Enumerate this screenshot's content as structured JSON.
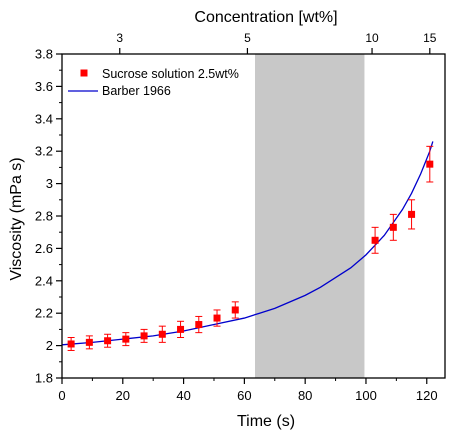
{
  "chart_data": {
    "type": "scatter",
    "title": "",
    "xlabel": "Time (s)",
    "ylabel": "Viscosity (mPa s)",
    "x2label": "Concentration [wt%]",
    "xlim": [
      0,
      126
    ],
    "ylim": [
      1.8,
      3.8
    ],
    "x_ticks": [
      0,
      20,
      40,
      60,
      80,
      100,
      120
    ],
    "x_tick_labels": [
      "0",
      "20",
      "40",
      "60",
      "80",
      "100",
      "120"
    ],
    "y_ticks": [
      1.8,
      2.0,
      2.2,
      2.4,
      2.6,
      2.8,
      3.0,
      3.2,
      3.4,
      3.6,
      3.8
    ],
    "y_tick_labels": [
      "1.8",
      "2",
      "2.2",
      "2.4",
      "2.6",
      "2.8",
      "3",
      "3.2",
      "3.4",
      "3.6",
      "3.8"
    ],
    "top_ticks": [
      {
        "label": "3",
        "x": 19
      },
      {
        "label": "5",
        "x": 61
      },
      {
        "label": "10",
        "x": 102
      },
      {
        "label": "15",
        "x": 121
      }
    ],
    "shaded_region": {
      "x_from": 63.5,
      "x_to": 99.5,
      "color": "#c8c8c8"
    },
    "legend_position": "top-left",
    "grid": false,
    "series": [
      {
        "name": "Sucrose solution 2.5wt%",
        "kind": "scatter",
        "color": "#ff0000",
        "marker": "square",
        "points": [
          {
            "x": 3,
            "y": 2.01,
            "err": 0.04
          },
          {
            "x": 9,
            "y": 2.02,
            "err": 0.04
          },
          {
            "x": 15,
            "y": 2.03,
            "err": 0.04
          },
          {
            "x": 21,
            "y": 2.04,
            "err": 0.04
          },
          {
            "x": 27,
            "y": 2.06,
            "err": 0.04
          },
          {
            "x": 33,
            "y": 2.07,
            "err": 0.05
          },
          {
            "x": 39,
            "y": 2.1,
            "err": 0.05
          },
          {
            "x": 45,
            "y": 2.13,
            "err": 0.05
          },
          {
            "x": 51,
            "y": 2.17,
            "err": 0.05
          },
          {
            "x": 57,
            "y": 2.22,
            "err": 0.05
          },
          {
            "x": 103,
            "y": 2.65,
            "err": 0.08
          },
          {
            "x": 109,
            "y": 2.73,
            "err": 0.08
          },
          {
            "x": 115,
            "y": 2.81,
            "err": 0.09
          },
          {
            "x": 121,
            "y": 3.12,
            "err": 0.11
          }
        ]
      },
      {
        "name": "Barber 1966",
        "kind": "line",
        "color": "#0000cc",
        "x": [
          0,
          10,
          20,
          30,
          40,
          50,
          60,
          65,
          70,
          75,
          80,
          85,
          90,
          95,
          100,
          103,
          106,
          109,
          112,
          115,
          118,
          121,
          122
        ],
        "y": [
          2.005,
          2.02,
          2.04,
          2.06,
          2.09,
          2.13,
          2.17,
          2.2,
          2.23,
          2.27,
          2.31,
          2.36,
          2.42,
          2.48,
          2.56,
          2.62,
          2.68,
          2.76,
          2.84,
          2.94,
          3.06,
          3.2,
          3.26
        ]
      }
    ]
  }
}
